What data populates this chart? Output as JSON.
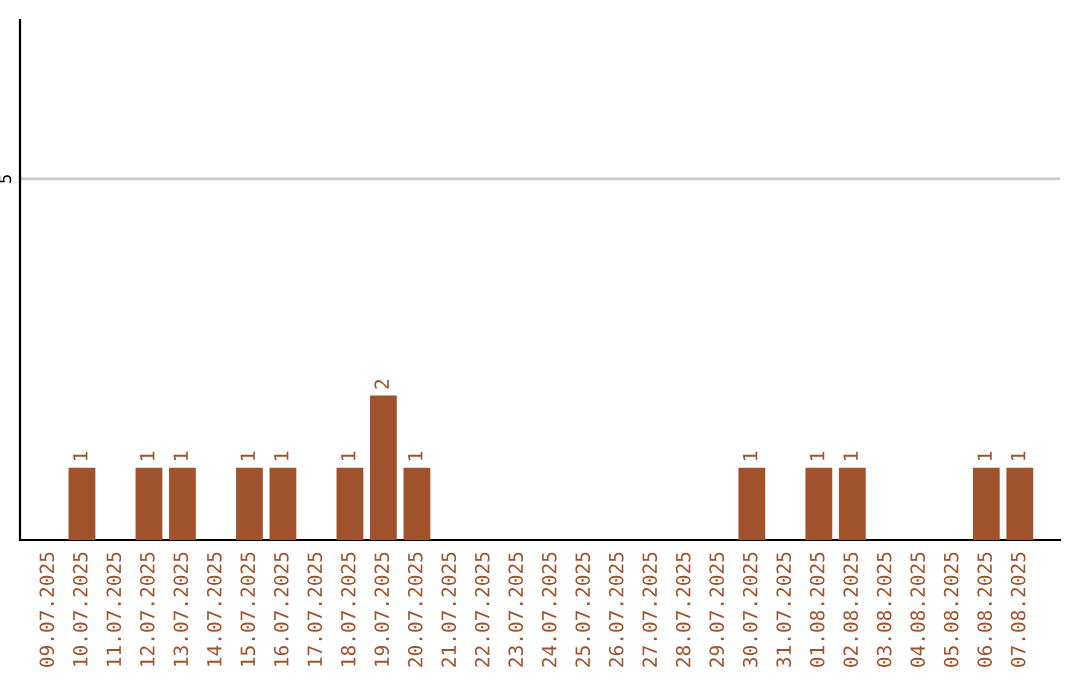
{
  "chart_data": {
    "type": "bar",
    "categories": [
      "09.07.2025",
      "10.07.2025",
      "11.07.2025",
      "12.07.2025",
      "13.07.2025",
      "14.07.2025",
      "15.07.2025",
      "16.07.2025",
      "17.07.2025",
      "18.07.2025",
      "19.07.2025",
      "20.07.2025",
      "21.07.2025",
      "22.07.2025",
      "23.07.2025",
      "24.07.2025",
      "25.07.2025",
      "26.07.2025",
      "27.07.2025",
      "28.07.2025",
      "29.07.2025",
      "30.07.2025",
      "31.07.2025",
      "01.08.2025",
      "02.08.2025",
      "03.08.2025",
      "04.08.2025",
      "05.08.2025",
      "06.08.2025",
      "07.08.2025"
    ],
    "values": [
      0,
      1,
      0,
      1,
      1,
      0,
      1,
      1,
      0,
      1,
      2,
      1,
      0,
      0,
      0,
      0,
      0,
      0,
      0,
      0,
      0,
      1,
      0,
      1,
      1,
      0,
      0,
      0,
      1,
      1
    ],
    "value_labels": [
      null,
      "1",
      null,
      "1",
      "1",
      null,
      "1",
      "1",
      null,
      "1",
      "2",
      "1",
      null,
      null,
      null,
      null,
      null,
      null,
      null,
      null,
      null,
      "1",
      null,
      "1",
      "1",
      null,
      null,
      null,
      "1",
      "1"
    ],
    "color": "#a0522d",
    "ylim": [
      0,
      7.2
    ],
    "yticks": [
      5
    ],
    "grid": "y"
  }
}
